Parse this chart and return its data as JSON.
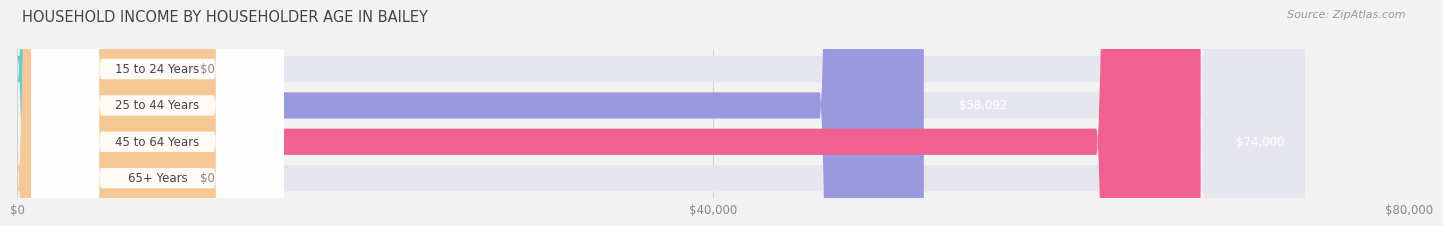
{
  "title": "HOUSEHOLD INCOME BY HOUSEHOLDER AGE IN BAILEY",
  "source_text": "Source: ZipAtlas.com",
  "categories": [
    "15 to 24 Years",
    "25 to 44 Years",
    "45 to 64 Years",
    "65+ Years"
  ],
  "values": [
    0,
    58092,
    74000,
    0
  ],
  "bar_colors": [
    "#5ecece",
    "#9999dd",
    "#f06090",
    "#f5c896"
  ],
  "bar_labels": [
    "$0",
    "$58,092",
    "$74,000",
    "$0"
  ],
  "xlim": [
    0,
    80000
  ],
  "xticks": [
    0,
    40000,
    80000
  ],
  "xtick_labels": [
    "$0",
    "$40,000",
    "$80,000"
  ],
  "bg_color": "#f2f2f2",
  "bar_bg_color": "#e6e6ee",
  "bar_height": 0.72,
  "title_fontsize": 10.5,
  "source_fontsize": 8,
  "label_fontsize": 8.5,
  "tick_fontsize": 8.5,
  "cat_label_fontsize": 8.5,
  "rounding_size": 12000,
  "zero_bar_width": 9000
}
